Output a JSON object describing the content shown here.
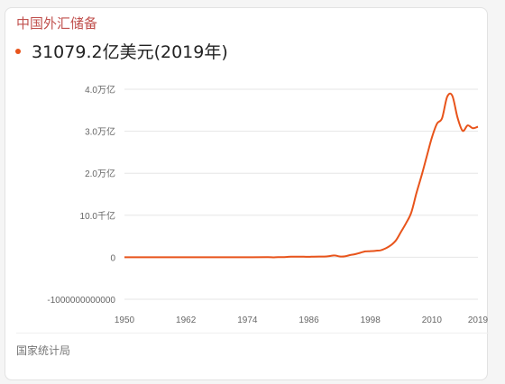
{
  "header": {
    "title": "中国外汇储备",
    "value": "31079.2亿美元(2019年)"
  },
  "source": "国家统计局",
  "colors": {
    "title": "#c0504d",
    "accent": "#e8541b",
    "grid": "#e6e6e6",
    "tick": "#666666"
  },
  "chart_data": {
    "type": "line",
    "title": "中国外汇储备",
    "xlabel": "",
    "ylabel": "",
    "xlim": [
      1950,
      2019
    ],
    "ylim": [
      -1000000000000,
      4000000000000
    ],
    "x_ticks": [
      1950,
      1962,
      1974,
      1986,
      1998,
      2010,
      2019
    ],
    "x_tick_labels": [
      "1950",
      "1962",
      "1974",
      "1986",
      "1998",
      "2010",
      "2019"
    ],
    "y_ticks": [
      4000000000000,
      3000000000000,
      2000000000000,
      1000000000000,
      0,
      -1000000000000
    ],
    "y_tick_labels": [
      "4.0万亿",
      "3.0万亿",
      "2.0万亿",
      "10.0千亿",
      "0",
      "-1000000000000"
    ],
    "grid": true,
    "series": [
      {
        "x": [
          1950,
          1955,
          1960,
          1965,
          1970,
          1975,
          1978,
          1979,
          1980,
          1981,
          1982,
          1983,
          1984,
          1985,
          1986,
          1987,
          1988,
          1989,
          1990,
          1991,
          1992,
          1993,
          1994,
          1995,
          1996,
          1997,
          1998,
          1999,
          2000,
          2001,
          2002,
          2003,
          2004,
          2005,
          2006,
          2007,
          2008,
          2009,
          2010,
          2011,
          2012,
          2013,
          2014,
          2015,
          2016,
          2017,
          2018,
          2019
        ],
        "values": [
          0,
          0,
          0,
          0,
          0,
          0,
          1600000000,
          -1300000000,
          2300000000,
          2700000000,
          11100000000,
          14300000000,
          14400000000,
          11900000000,
          10500000000,
          15200000000,
          17500000000,
          17000000000,
          28600000000,
          43700000000,
          19400000000,
          21200000000,
          51600000000,
          73600000000,
          105000000000,
          139900000000,
          145000000000,
          154700000000,
          165600000000,
          212200000000,
          286400000000,
          403300000000,
          609900000000,
          818900000000,
          1066300000000,
          1528200000000,
          1946000000000,
          2399200000000,
          2847300000000,
          3181100000000,
          3311600000000,
          3821300000000,
          3843000000000,
          3330400000000,
          3010500000000,
          3139900000000,
          3072700000000,
          3107900000000
        ]
      }
    ]
  }
}
